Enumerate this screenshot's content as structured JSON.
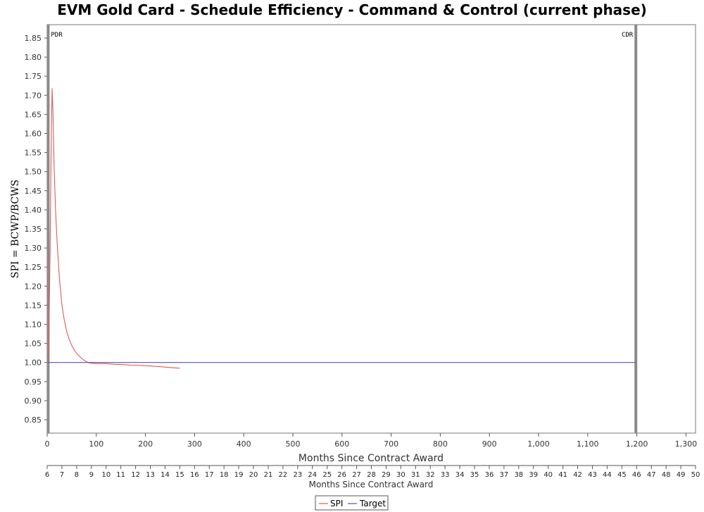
{
  "chart_data": {
    "type": "line",
    "title": "EVM Gold Card - Schedule Efficiency - Command & Control (current phase)",
    "ylabel": "SPI = BCWP/BCWS",
    "xlabel": "Months Since Contract Award",
    "xlabel2": "Months Since Contract Award",
    "ylim": [
      0.815,
      1.885
    ],
    "xlim": [
      0,
      1320
    ],
    "yticks": [
      0.85,
      0.9,
      0.95,
      1.0,
      1.05,
      1.1,
      1.15,
      1.2,
      1.25,
      1.3,
      1.35,
      1.4,
      1.45,
      1.5,
      1.55,
      1.6,
      1.65,
      1.7,
      1.75,
      1.8,
      1.85
    ],
    "ytick_labels": [
      "0.85",
      "0.90",
      "0.95",
      "1.00",
      "1.05",
      "1.10",
      "1.15",
      "1.20",
      "1.25",
      "1.30",
      "1.35",
      "1.40",
      "1.45",
      "1.50",
      "1.55",
      "1.60",
      "1.65",
      "1.70",
      "1.75",
      "1.80",
      "1.85"
    ],
    "xticks": [
      0,
      100,
      200,
      300,
      400,
      500,
      600,
      700,
      800,
      900,
      1000,
      1100,
      1200,
      1300
    ],
    "xtick_labels": [
      "0",
      "100",
      "200",
      "300",
      "400",
      "500",
      "600",
      "700",
      "800",
      "900",
      "1,000",
      "1,100",
      "1,200",
      "1,300"
    ],
    "month_axis": {
      "start": 6,
      "end": 50,
      "labels": [
        "6",
        "7",
        "8",
        "9",
        "10",
        "11",
        "12",
        "13",
        "14",
        "15",
        "16",
        "17",
        "18",
        "19",
        "20",
        "21",
        "22",
        "23",
        "24",
        "25",
        "26",
        "27",
        "28",
        "29",
        "30",
        "31",
        "32",
        "33",
        "34",
        "35",
        "36",
        "37",
        "38",
        "39",
        "40",
        "41",
        "42",
        "43",
        "44",
        "45",
        "46",
        "47",
        "48",
        "49",
        "50"
      ]
    },
    "milestones": [
      {
        "label": "PDR",
        "x": 2
      },
      {
        "label": "CDR",
        "x": 1198
      }
    ],
    "series": [
      {
        "name": "SPI",
        "color": "#e05a5a",
        "x": [
          3,
          6,
          8,
          10,
          12,
          14,
          17,
          20,
          25,
          30,
          35,
          40,
          45,
          50,
          55,
          60,
          65,
          70,
          75,
          80,
          85,
          90,
          100,
          110,
          120,
          130,
          140,
          150,
          160,
          170,
          180,
          190,
          200,
          210,
          220,
          230,
          240,
          250,
          260,
          270
        ],
        "values": [
          1.0,
          1.3,
          1.55,
          1.718,
          1.65,
          1.52,
          1.4,
          1.32,
          1.22,
          1.15,
          1.11,
          1.08,
          1.06,
          1.045,
          1.033,
          1.024,
          1.017,
          1.011,
          1.006,
          1.002,
          0.999,
          0.998,
          0.997,
          0.997,
          0.997,
          0.996,
          0.995,
          0.995,
          0.994,
          0.993,
          0.993,
          0.992,
          0.992,
          0.991,
          0.99,
          0.989,
          0.988,
          0.987,
          0.986,
          0.985
        ]
      },
      {
        "name": "Target",
        "color": "#5a4fb0",
        "x": [
          2,
          1198
        ],
        "values": [
          1.0,
          1.0
        ]
      }
    ],
    "legend": "bottom-center",
    "grid": false
  }
}
